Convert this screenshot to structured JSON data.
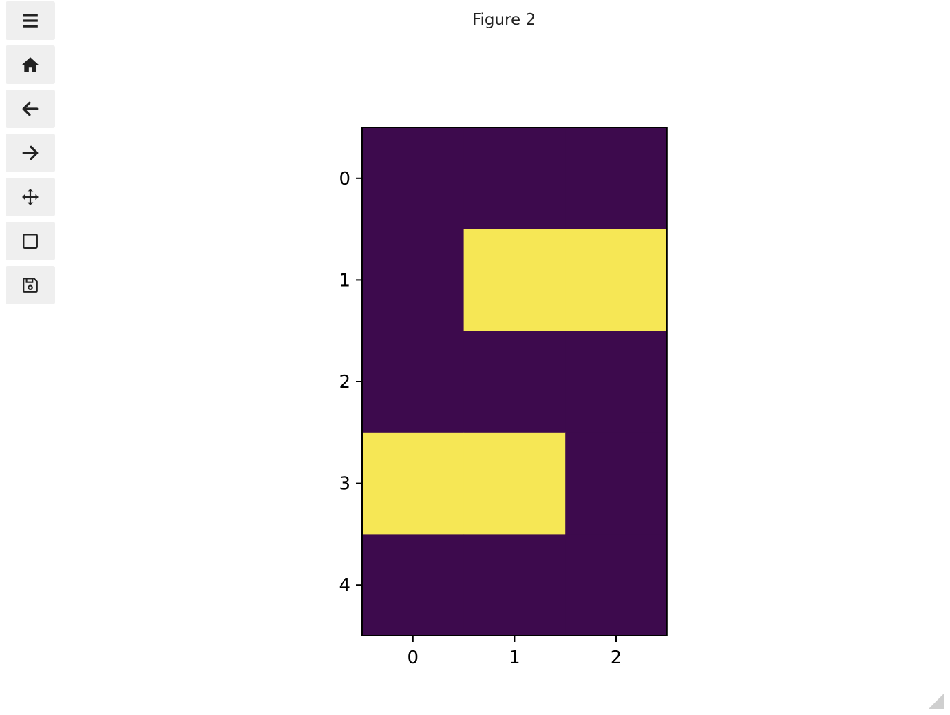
{
  "figure": {
    "title": "Figure 2"
  },
  "toolbar": {
    "buttons": [
      {
        "icon": "menu-icon"
      },
      {
        "icon": "home-icon"
      },
      {
        "icon": "back-arrow-icon"
      },
      {
        "icon": "forward-arrow-icon"
      },
      {
        "icon": "move-icon"
      },
      {
        "icon": "zoom-rect-icon"
      },
      {
        "icon": "save-icon"
      }
    ]
  },
  "chart_data": {
    "type": "heatmap",
    "title": "",
    "xlabel": "",
    "ylabel": "",
    "x_ticks": [
      "0",
      "1",
      "2"
    ],
    "y_ticks": [
      "0",
      "1",
      "2",
      "3",
      "4"
    ],
    "values": [
      [
        0,
        0,
        0
      ],
      [
        0,
        1,
        1
      ],
      [
        0,
        0,
        0
      ],
      [
        1,
        1,
        0
      ],
      [
        0,
        0,
        0
      ]
    ],
    "colormap": {
      "low": "#3d0a4d",
      "high": "#f6e755"
    },
    "colorbar": false
  }
}
